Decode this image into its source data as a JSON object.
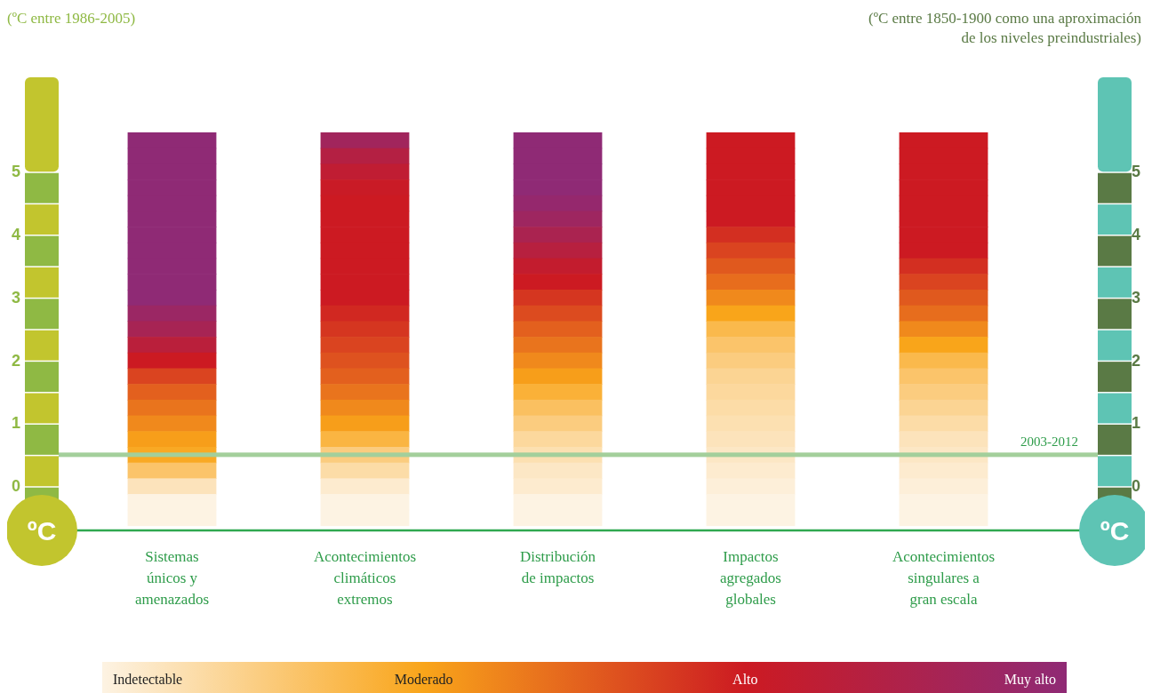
{
  "chart_data": {
    "type": "heatmap",
    "categories": [
      "Sistemas únicos y amenazados",
      "Acontecimientos climáticos extremos",
      "Distribución de impactos",
      "Impactos agregados globales",
      "Acontecimientos singulares a gran escala"
    ],
    "y_categories": [
      null,
      null,
      "5",
      null,
      null,
      null,
      "4",
      null,
      null,
      null,
      "3",
      null,
      null,
      null,
      "2",
      null,
      null,
      null,
      "1",
      null,
      null,
      null,
      "0",
      null,
      null
    ],
    "y2_categories": [
      null,
      null,
      "5",
      null,
      null,
      null,
      "4",
      null,
      null,
      null,
      "3",
      null,
      null,
      null,
      "2",
      null,
      null,
      null,
      "1",
      null,
      null,
      null,
      "0",
      null,
      null
    ],
    "cells": [
      [
        3,
        2.7,
        3,
        2,
        2
      ],
      [
        3,
        2.4,
        3,
        2,
        2
      ],
      [
        3,
        2.2,
        3,
        2,
        2
      ],
      [
        3,
        2.05,
        3,
        2,
        2
      ],
      [
        3,
        2,
        2.9,
        2,
        2
      ],
      [
        3,
        2,
        2.75,
        2,
        2
      ],
      [
        3,
        2,
        2.55,
        1.85,
        2
      ],
      [
        3,
        2,
        2.35,
        1.7,
        2
      ],
      [
        3,
        2,
        2.15,
        1.55,
        1.85
      ],
      [
        3,
        2,
        2,
        1.4,
        1.7
      ],
      [
        3,
        2,
        1.8,
        1.2,
        1.55
      ],
      [
        2.8,
        1.9,
        1.65,
        1,
        1.4
      ],
      [
        2.6,
        1.8,
        1.5,
        0.75,
        1.2
      ],
      [
        2.3,
        1.7,
        1.35,
        0.6,
        1
      ],
      [
        2,
        1.6,
        1.2,
        0.5,
        0.75
      ],
      [
        1.7,
        1.5,
        1.05,
        0.4,
        0.6
      ],
      [
        1.5,
        1.35,
        0.85,
        0.35,
        0.5
      ],
      [
        1.35,
        1.2,
        0.65,
        0.3,
        0.4
      ],
      [
        1.2,
        1.05,
        0.5,
        0.25,
        0.3
      ],
      [
        1.05,
        0.8,
        0.35,
        0.2,
        0.2
      ],
      [
        0.95,
        0.5,
        0.25,
        0.15,
        0.15
      ],
      [
        0.6,
        0.3,
        0.15,
        0.1,
        0.1
      ],
      [
        0.2,
        0.1,
        0.1,
        0.05,
        0.05
      ],
      [
        0,
        0,
        0,
        0,
        0
      ],
      [
        0,
        0,
        0,
        0,
        0
      ]
    ],
    "clim": [
      0,
      3
    ],
    "cticks": [
      {
        "value": 0,
        "label": "Indetectable"
      },
      {
        "value": 1,
        "label": "Moderado"
      },
      {
        "value": 2,
        "label": "Alto"
      },
      {
        "value": 3,
        "label": "Muy alto"
      }
    ],
    "colors": [
      "#fdf3e3",
      "#f9a51a",
      "#cc1a22",
      "#8f2a75"
    ],
    "annotations": [
      "(ºC entre 1986-2005)",
      "(ºC entre 1850-1900 como una aproximación de los niveles preindustriales)",
      "2003-2012",
      "ºC",
      "ºC"
    ]
  }
}
